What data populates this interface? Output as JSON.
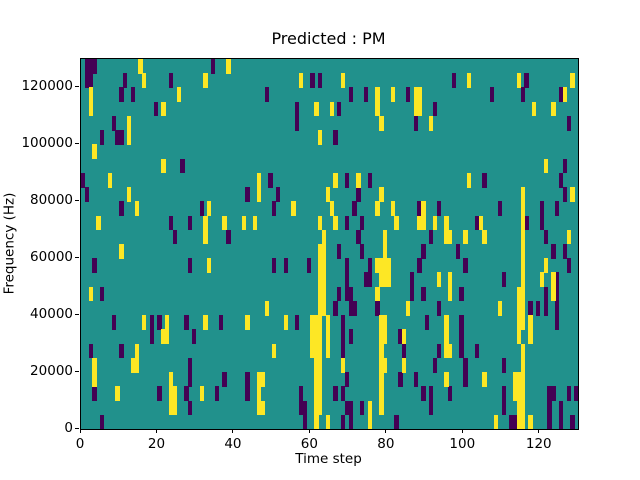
{
  "chart_data": {
    "type": "heatmap",
    "title": "Predicted : PM",
    "xlabel": "Time step",
    "ylabel": "Frequency (Hz)",
    "xlim": [
      0,
      130
    ],
    "ylim": [
      0,
      130000
    ],
    "x_ticks": [
      0,
      20,
      40,
      60,
      80,
      100,
      120
    ],
    "y_ticks": [
      0,
      20000,
      40000,
      60000,
      80000,
      100000,
      120000
    ],
    "grid_size": {
      "n_cols": 130,
      "n_rows": 26
    },
    "legend_position": "none",
    "axes_grid": false,
    "colors": {
      "low": "#440154",
      "mid": "#21918c",
      "high": "#fde725",
      "figure_background": "#ffffff",
      "spine": "#000000"
    },
    "value_levels": {
      "low": 0,
      "mid": 1,
      "high": 2
    },
    "rows_order": "top-to-bottom",
    "cells_low": [
      [
        0,
        1
      ],
      [
        0,
        2
      ],
      [
        0,
        3
      ],
      [
        0,
        34
      ],
      [
        1,
        1
      ],
      [
        1,
        2
      ],
      [
        1,
        11
      ],
      [
        1,
        23
      ],
      [
        1,
        60
      ],
      [
        1,
        62
      ],
      [
        1,
        97
      ],
      [
        1,
        116
      ],
      [
        2,
        10
      ],
      [
        2,
        13
      ],
      [
        2,
        48
      ],
      [
        2,
        70
      ],
      [
        2,
        74
      ],
      [
        2,
        85
      ],
      [
        2,
        107
      ],
      [
        2,
        115
      ],
      [
        2,
        125
      ],
      [
        3,
        19
      ],
      [
        3,
        56
      ],
      [
        3,
        67
      ],
      [
        3,
        92
      ],
      [
        4,
        8
      ],
      [
        4,
        56
      ],
      [
        4,
        87
      ],
      [
        4,
        127
      ],
      [
        5,
        5
      ],
      [
        5,
        9
      ],
      [
        5,
        10
      ],
      [
        5,
        66
      ],
      [
        7,
        26
      ],
      [
        7,
        126
      ],
      [
        8,
        0
      ],
      [
        8,
        49
      ],
      [
        8,
        69
      ],
      [
        8,
        75
      ],
      [
        8,
        105
      ],
      [
        8,
        125
      ],
      [
        9,
        1
      ],
      [
        9,
        43
      ],
      [
        9,
        51
      ],
      [
        9,
        64
      ],
      [
        9,
        72
      ],
      [
        9,
        126
      ],
      [
        10,
        10
      ],
      [
        10,
        31
      ],
      [
        10,
        50
      ],
      [
        10,
        71
      ],
      [
        10,
        88
      ],
      [
        10,
        93
      ],
      [
        10,
        109
      ],
      [
        10,
        120
      ],
      [
        10,
        124
      ],
      [
        11,
        23
      ],
      [
        11,
        28
      ],
      [
        11,
        69
      ],
      [
        11,
        73
      ],
      [
        11,
        103
      ],
      [
        11,
        116
      ],
      [
        11,
        120
      ],
      [
        12,
        24
      ],
      [
        12,
        38
      ],
      [
        12,
        72
      ],
      [
        12,
        91
      ],
      [
        12,
        121
      ],
      [
        13,
        67
      ],
      [
        13,
        73
      ],
      [
        13,
        89
      ],
      [
        13,
        98
      ],
      [
        13,
        123
      ],
      [
        13,
        126
      ],
      [
        14,
        3
      ],
      [
        14,
        28
      ],
      [
        14,
        50
      ],
      [
        14,
        53
      ],
      [
        14,
        59
      ],
      [
        14,
        69
      ],
      [
        14,
        75
      ],
      [
        14,
        88
      ],
      [
        14,
        100
      ],
      [
        14,
        127
      ],
      [
        15,
        69
      ],
      [
        15,
        74
      ],
      [
        15,
        75
      ],
      [
        15,
        86
      ],
      [
        15,
        110
      ],
      [
        15,
        124
      ],
      [
        16,
        5
      ],
      [
        16,
        67
      ],
      [
        16,
        69
      ],
      [
        16,
        70
      ],
      [
        16,
        86
      ],
      [
        16,
        89
      ],
      [
        16,
        99
      ],
      [
        16,
        121
      ],
      [
        16,
        124
      ],
      [
        17,
        66
      ],
      [
        17,
        70
      ],
      [
        17,
        71
      ],
      [
        17,
        77
      ],
      [
        17,
        93
      ],
      [
        17,
        117
      ],
      [
        17,
        119
      ],
      [
        17,
        121
      ],
      [
        17,
        124
      ],
      [
        18,
        8
      ],
      [
        18,
        18
      ],
      [
        18,
        20
      ],
      [
        18,
        27
      ],
      [
        18,
        36
      ],
      [
        18,
        56
      ],
      [
        18,
        68
      ],
      [
        18,
        90
      ],
      [
        18,
        99
      ],
      [
        18,
        124
      ],
      [
        19,
        18
      ],
      [
        19,
        29
      ],
      [
        19,
        68
      ],
      [
        19,
        70
      ],
      [
        19,
        83
      ],
      [
        19,
        99
      ],
      [
        20,
        2
      ],
      [
        20,
        10
      ],
      [
        20,
        68
      ],
      [
        20,
        84
      ],
      [
        20,
        93
      ],
      [
        20,
        99
      ],
      [
        20,
        103
      ],
      [
        21,
        28
      ],
      [
        21,
        68
      ],
      [
        21,
        92
      ],
      [
        21,
        100
      ],
      [
        21,
        110
      ],
      [
        22,
        28
      ],
      [
        22,
        37
      ],
      [
        22,
        43
      ],
      [
        22,
        69
      ],
      [
        22,
        83
      ],
      [
        22,
        87
      ],
      [
        22,
        100
      ],
      [
        23,
        3
      ],
      [
        23,
        20
      ],
      [
        23,
        27
      ],
      [
        23,
        35
      ],
      [
        23,
        43
      ],
      [
        23,
        57
      ],
      [
        23,
        66
      ],
      [
        23,
        68
      ],
      [
        23,
        89
      ],
      [
        23,
        91
      ],
      [
        23,
        96
      ],
      [
        23,
        110
      ],
      [
        23,
        122
      ],
      [
        23,
        123
      ],
      [
        23,
        127
      ],
      [
        23,
        129
      ],
      [
        24,
        28
      ],
      [
        24,
        57
      ],
      [
        24,
        58
      ],
      [
        24,
        69
      ],
      [
        24,
        70
      ],
      [
        24,
        73
      ],
      [
        24,
        91
      ],
      [
        24,
        110
      ],
      [
        24,
        122
      ],
      [
        24,
        125
      ],
      [
        25,
        5
      ],
      [
        25,
        58
      ],
      [
        25,
        68
      ],
      [
        25,
        70
      ],
      [
        25,
        82
      ],
      [
        25,
        112
      ],
      [
        25,
        113
      ],
      [
        25,
        122
      ],
      [
        25,
        125
      ],
      [
        25,
        128
      ]
    ],
    "cells_high": [
      [
        0,
        15
      ],
      [
        0,
        38
      ],
      [
        1,
        16
      ],
      [
        1,
        32
      ],
      [
        1,
        57
      ],
      [
        1,
        68
      ],
      [
        1,
        101
      ],
      [
        1,
        114
      ],
      [
        1,
        128
      ],
      [
        2,
        2
      ],
      [
        2,
        25
      ],
      [
        2,
        77
      ],
      [
        2,
        81
      ],
      [
        2,
        87
      ],
      [
        2,
        88
      ],
      [
        2,
        126
      ],
      [
        3,
        2
      ],
      [
        3,
        21
      ],
      [
        3,
        61
      ],
      [
        3,
        65
      ],
      [
        3,
        77
      ],
      [
        3,
        87
      ],
      [
        3,
        88
      ],
      [
        3,
        118
      ],
      [
        3,
        123
      ],
      [
        4,
        12
      ],
      [
        4,
        78
      ],
      [
        4,
        91
      ],
      [
        5,
        12
      ],
      [
        5,
        62
      ],
      [
        6,
        3
      ],
      [
        7,
        21
      ],
      [
        7,
        121
      ],
      [
        8,
        7
      ],
      [
        8,
        46
      ],
      [
        8,
        66
      ],
      [
        8,
        72
      ],
      [
        8,
        101
      ],
      [
        9,
        12
      ],
      [
        9,
        46
      ],
      [
        9,
        64
      ],
      [
        9,
        78
      ],
      [
        9,
        115
      ],
      [
        9,
        128
      ],
      [
        10,
        14
      ],
      [
        10,
        33
      ],
      [
        10,
        55
      ],
      [
        10,
        65
      ],
      [
        10,
        77
      ],
      [
        10,
        81
      ],
      [
        10,
        89
      ],
      [
        10,
        115
      ],
      [
        11,
        4
      ],
      [
        11,
        32
      ],
      [
        11,
        37
      ],
      [
        11,
        42
      ],
      [
        11,
        45
      ],
      [
        11,
        62
      ],
      [
        11,
        66
      ],
      [
        11,
        82
      ],
      [
        11,
        88
      ],
      [
        11,
        89
      ],
      [
        11,
        92
      ],
      [
        11,
        95
      ],
      [
        11,
        104
      ],
      [
        11,
        115
      ],
      [
        12,
        32
      ],
      [
        12,
        63
      ],
      [
        12,
        79
      ],
      [
        12,
        95
      ],
      [
        12,
        96
      ],
      [
        12,
        100
      ],
      [
        12,
        105
      ],
      [
        12,
        115
      ],
      [
        12,
        127
      ],
      [
        13,
        10
      ],
      [
        13,
        62
      ],
      [
        13,
        63
      ],
      [
        13,
        79
      ],
      [
        13,
        115
      ],
      [
        14,
        33
      ],
      [
        14,
        62
      ],
      [
        14,
        63
      ],
      [
        14,
        77
      ],
      [
        14,
        78
      ],
      [
        14,
        79
      ],
      [
        14,
        80
      ],
      [
        14,
        115
      ],
      [
        14,
        121
      ],
      [
        15,
        62
      ],
      [
        15,
        63
      ],
      [
        15,
        78
      ],
      [
        15,
        79
      ],
      [
        15,
        80
      ],
      [
        15,
        93
      ],
      [
        15,
        96
      ],
      [
        15,
        115
      ],
      [
        15,
        120
      ],
      [
        15,
        123
      ],
      [
        16,
        2
      ],
      [
        16,
        62
      ],
      [
        16,
        63
      ],
      [
        16,
        77
      ],
      [
        16,
        96
      ],
      [
        16,
        114
      ],
      [
        16,
        115
      ],
      [
        16,
        123
      ],
      [
        17,
        48
      ],
      [
        17,
        62
      ],
      [
        17,
        63
      ],
      [
        17,
        85
      ],
      [
        17,
        109
      ],
      [
        17,
        114
      ],
      [
        17,
        115
      ],
      [
        18,
        16
      ],
      [
        18,
        22
      ],
      [
        18,
        32
      ],
      [
        18,
        43
      ],
      [
        18,
        53
      ],
      [
        18,
        60
      ],
      [
        18,
        61
      ],
      [
        18,
        62
      ],
      [
        18,
        64
      ],
      [
        18,
        78
      ],
      [
        18,
        79
      ],
      [
        18,
        95
      ],
      [
        18,
        114
      ],
      [
        18,
        115
      ],
      [
        18,
        117
      ],
      [
        19,
        21
      ],
      [
        19,
        22
      ],
      [
        19,
        60
      ],
      [
        19,
        61
      ],
      [
        19,
        62
      ],
      [
        19,
        64
      ],
      [
        19,
        78
      ],
      [
        19,
        79
      ],
      [
        19,
        84
      ],
      [
        19,
        95
      ],
      [
        19,
        114
      ],
      [
        19,
        117
      ],
      [
        20,
        14
      ],
      [
        20,
        50
      ],
      [
        20,
        60
      ],
      [
        20,
        61
      ],
      [
        20,
        62
      ],
      [
        20,
        64
      ],
      [
        20,
        78
      ],
      [
        20,
        95
      ],
      [
        20,
        96
      ],
      [
        20,
        115
      ],
      [
        21,
        3
      ],
      [
        21,
        13
      ],
      [
        21,
        14
      ],
      [
        21,
        61
      ],
      [
        21,
        62
      ],
      [
        21,
        68
      ],
      [
        21,
        78
      ],
      [
        21,
        79
      ],
      [
        21,
        84
      ],
      [
        21,
        115
      ],
      [
        22,
        3
      ],
      [
        22,
        23
      ],
      [
        22,
        46
      ],
      [
        22,
        47
      ],
      [
        22,
        61
      ],
      [
        22,
        62
      ],
      [
        22,
        78
      ],
      [
        22,
        95
      ],
      [
        22,
        105
      ],
      [
        22,
        113
      ],
      [
        22,
        114
      ],
      [
        22,
        115
      ],
      [
        23,
        9
      ],
      [
        23,
        23
      ],
      [
        23,
        24
      ],
      [
        23,
        31
      ],
      [
        23,
        46
      ],
      [
        23,
        61
      ],
      [
        23,
        62
      ],
      [
        23,
        78
      ],
      [
        23,
        113
      ],
      [
        23,
        114
      ],
      [
        23,
        115
      ],
      [
        24,
        23
      ],
      [
        24,
        24
      ],
      [
        24,
        46
      ],
      [
        24,
        47
      ],
      [
        24,
        61
      ],
      [
        24,
        62
      ],
      [
        24,
        75
      ],
      [
        24,
        78
      ],
      [
        24,
        114
      ],
      [
        24,
        115
      ],
      [
        25,
        61
      ],
      [
        25,
        64
      ],
      [
        25,
        75
      ],
      [
        25,
        108
      ],
      [
        25,
        114
      ],
      [
        25,
        115
      ],
      [
        25,
        117
      ]
    ]
  }
}
